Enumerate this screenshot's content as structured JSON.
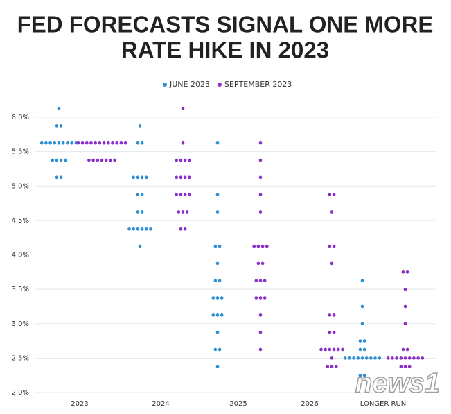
{
  "chart_data": {
    "type": "dot",
    "title": [
      "FED FORECASTS SIGNAL ONE MORE",
      "RATE HIKE IN 2023"
    ],
    "categories": [
      "2023",
      "2024",
      "2025",
      "2026",
      "LONGER RUN"
    ],
    "series": [
      {
        "name": "JUNE 2023",
        "color": "#2e8fd4",
        "values": [
          [
            6.125,
            5.875,
            5.875,
            5.625,
            5.625,
            5.625,
            5.625,
            5.625,
            5.625,
            5.625,
            5.625,
            5.625,
            5.375,
            5.375,
            5.375,
            5.375,
            5.125,
            5.125
          ],
          [
            5.875,
            5.625,
            5.625,
            5.125,
            5.125,
            5.125,
            5.125,
            4.875,
            4.875,
            4.625,
            4.625,
            4.375,
            4.375,
            4.375,
            4.375,
            4.375,
            4.375,
            4.125
          ],
          [
            5.625,
            4.875,
            4.625,
            4.125,
            4.125,
            3.875,
            3.625,
            3.625,
            3.375,
            3.375,
            3.375,
            3.125,
            3.125,
            3.125,
            2.875,
            2.625,
            2.625,
            2.375
          ],
          [],
          [
            3.625,
            3.25,
            3.0,
            2.75,
            2.75,
            2.625,
            2.625,
            2.5,
            2.5,
            2.5,
            2.5,
            2.5,
            2.5,
            2.5,
            2.5,
            2.5,
            2.25,
            2.25
          ]
        ]
      },
      {
        "name": "SEPTEMBER 2023",
        "color": "#8b2fc9",
        "values": [
          [
            5.625,
            5.625,
            5.625,
            5.625,
            5.625,
            5.625,
            5.625,
            5.625,
            5.625,
            5.625,
            5.625,
            5.625,
            5.375,
            5.375,
            5.375,
            5.375,
            5.375,
            5.375,
            5.375
          ],
          [
            6.125,
            5.625,
            5.375,
            5.375,
            5.375,
            5.375,
            5.125,
            5.125,
            5.125,
            5.125,
            4.875,
            4.875,
            4.875,
            4.875,
            4.625,
            4.625,
            4.625,
            4.375,
            4.375
          ],
          [
            5.625,
            5.375,
            5.125,
            4.875,
            4.625,
            4.125,
            4.125,
            4.125,
            4.125,
            3.875,
            3.875,
            3.625,
            3.625,
            3.625,
            3.375,
            3.375,
            3.375,
            3.125,
            2.875,
            2.625
          ],
          [
            4.875,
            4.875,
            4.625,
            4.125,
            4.125,
            3.875,
            3.125,
            3.125,
            2.875,
            2.875,
            2.625,
            2.625,
            2.625,
            2.625,
            2.625,
            2.625,
            2.5,
            2.375,
            2.375,
            2.375
          ],
          [
            3.75,
            3.75,
            3.5,
            3.25,
            3.0,
            2.625,
            2.625,
            2.5,
            2.5,
            2.5,
            2.5,
            2.5,
            2.5,
            2.5,
            2.5,
            2.5,
            2.375,
            2.375,
            2.375
          ]
        ]
      }
    ],
    "ylim": [
      2.0,
      6.0
    ],
    "yticks": [
      {
        "value": 2.0,
        "label": "2.0%"
      },
      {
        "value": 2.5,
        "label": "2.5%"
      },
      {
        "value": 3.0,
        "label": "3.0%"
      },
      {
        "value": 3.5,
        "label": "3.5%"
      },
      {
        "value": 4.0,
        "label": "4.0%"
      },
      {
        "value": 4.5,
        "label": "4.5%"
      },
      {
        "value": 5.0,
        "label": "5.0%"
      },
      {
        "value": 5.5,
        "label": "5.5%"
      },
      {
        "value": 6.0,
        "label": "6.0%"
      }
    ],
    "grid": true,
    "watermark": "news1"
  }
}
